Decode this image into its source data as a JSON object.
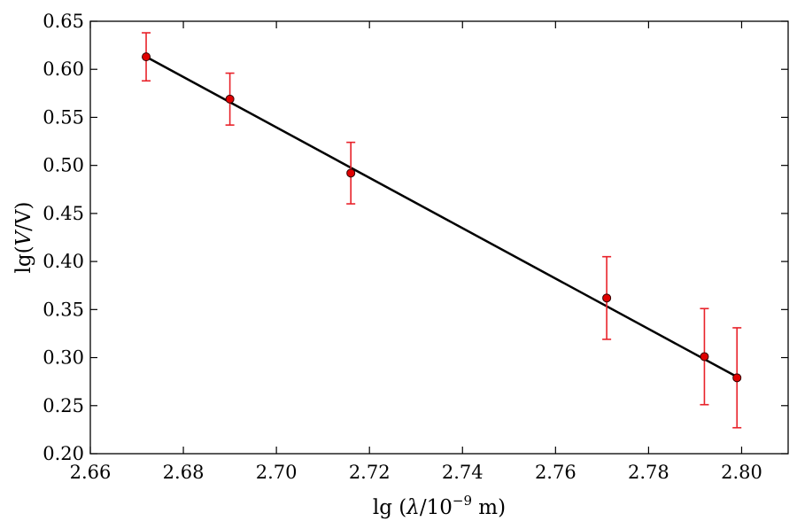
{
  "chart_data": {
    "type": "scatter",
    "xlabel": "lg (λ/10⁻⁹ m)",
    "xlabel_parts": {
      "prefix": "lg (",
      "var": "λ",
      "mid": "/10",
      "exp": "−9",
      "unit": " m)"
    },
    "ylabel": "lg(V/V)",
    "ylabel_parts": {
      "prefix": "lg(",
      "var": "V",
      "suffix": "/V)"
    },
    "xlim": [
      2.66,
      2.81
    ],
    "ylim": [
      0.2,
      0.65
    ],
    "xticks": [
      2.66,
      2.68,
      2.7,
      2.72,
      2.74,
      2.76,
      2.78,
      2.8
    ],
    "xtick_labels": [
      "2.66",
      "2.68",
      "2.70",
      "2.72",
      "2.74",
      "2.76",
      "2.78",
      "2.80"
    ],
    "yticks": [
      0.2,
      0.25,
      0.3,
      0.35,
      0.4,
      0.45,
      0.5,
      0.55,
      0.6,
      0.65
    ],
    "ytick_labels": [
      "0.20",
      "0.25",
      "0.30",
      "0.35",
      "0.40",
      "0.45",
      "0.50",
      "0.55",
      "0.60",
      "0.65"
    ],
    "grid": false,
    "points": [
      {
        "x": 2.672,
        "y": 0.613,
        "yerr_low": 0.025,
        "yerr_high": 0.025
      },
      {
        "x": 2.69,
        "y": 0.569,
        "yerr_low": 0.027,
        "yerr_high": 0.027
      },
      {
        "x": 2.716,
        "y": 0.492,
        "yerr_low": 0.032,
        "yerr_high": 0.032
      },
      {
        "x": 2.771,
        "y": 0.362,
        "yerr_low": 0.043,
        "yerr_high": 0.043
      },
      {
        "x": 2.792,
        "y": 0.301,
        "yerr_low": 0.05,
        "yerr_high": 0.05
      },
      {
        "x": 2.799,
        "y": 0.279,
        "yerr_low": 0.052,
        "yerr_high": 0.052
      }
    ],
    "fit_line": {
      "x": [
        2.672,
        2.799
      ],
      "y": [
        0.613,
        0.28
      ]
    },
    "colors": {
      "points": "#e00000",
      "errorbars": "#e8222a",
      "line": "#000000"
    }
  }
}
